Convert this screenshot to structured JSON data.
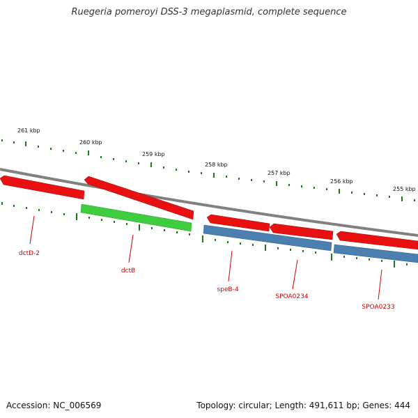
{
  "title": "Ruegeria pomeroyi DSS-3 megaplasmid, complete sequence",
  "footer": {
    "accession": "Accession: NC_006569",
    "summary": "Topology: circular; Length: 491,611 bp; Genes: 444"
  },
  "ruler_labels": [
    "261 kbp",
    "260 kbp",
    "259 kbp",
    "258 kbp",
    "257 kbp",
    "256 kbp",
    "255 kbp"
  ],
  "genes": [
    {
      "name": "dctD-2",
      "strand": "reverse",
      "color": "#e81010"
    },
    {
      "name": "dctB",
      "strand": "reverse",
      "color": "#e81010"
    },
    {
      "name": "",
      "strand": "forward",
      "color": "#3fcc3f"
    },
    {
      "name": "speB-4",
      "strand": "reverse",
      "color": "#e81010"
    },
    {
      "name": "SPOA0234",
      "strand": "reverse",
      "color": "#e81010"
    },
    {
      "name": "SPOA0233",
      "strand": "reverse",
      "color": "#e81010"
    },
    {
      "name": "",
      "strand": "forward",
      "color": "#4a7fb0"
    },
    {
      "name": "",
      "strand": "forward",
      "color": "#4a7fb0"
    }
  ],
  "colors": {
    "backbone": "#808080",
    "tick": "#1a7a1a",
    "label": "#cc0000",
    "reverse_gene": "#e81010",
    "forward_gene_green": "#3fcc3f",
    "forward_gene_blue": "#4a7fb0"
  }
}
